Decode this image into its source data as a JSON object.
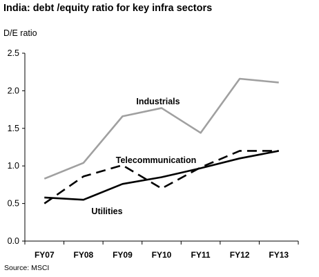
{
  "chart_data": {
    "type": "line",
    "title": "India: debt /equity ratio for key infra sectors",
    "ylabel": "D/E ratio",
    "xlabel": "",
    "categories": [
      "FY07",
      "FY08",
      "FY09",
      "FY10",
      "FY11",
      "FY12",
      "FY13"
    ],
    "ylim": [
      0,
      2.5
    ],
    "yticks": [
      "0.0",
      "0.5",
      "1.0",
      "1.5",
      "2.0",
      "2.5"
    ],
    "grid": false,
    "series": [
      {
        "name": "Industrials",
        "values": [
          0.83,
          1.04,
          1.66,
          1.77,
          1.44,
          2.16,
          2.11
        ],
        "color": "#a0a0a0",
        "dash": "solid"
      },
      {
        "name": "Telecommunication",
        "values": [
          0.5,
          0.86,
          1.01,
          0.7,
          0.98,
          1.2,
          1.2
        ],
        "color": "#000000",
        "dash": "dashed"
      },
      {
        "name": "Utilities",
        "values": [
          0.58,
          0.55,
          0.76,
          0.85,
          0.97,
          1.1,
          1.2
        ],
        "color": "#000000",
        "dash": "solid"
      }
    ],
    "source": "Source: MSCI"
  }
}
